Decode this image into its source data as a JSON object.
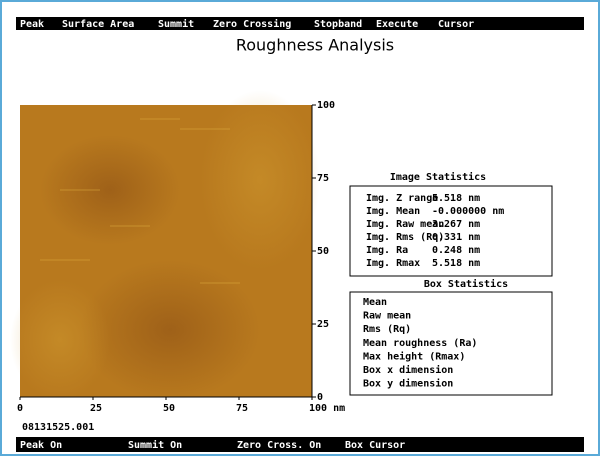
{
  "menu": [
    "Peak",
    "Surface Area",
    "Summit",
    "Zero Crossing",
    "Stopband",
    "Execute",
    "Cursor"
  ],
  "title": "Roughness Analysis",
  "image": {
    "xlim": [
      0,
      100
    ],
    "ylim": [
      0,
      100
    ],
    "xticks": [
      0,
      25,
      50,
      75,
      {
        "value": 100,
        "label": "100 nm"
      }
    ],
    "yticks": [
      0,
      25,
      50,
      75,
      100
    ]
  },
  "image_statistics": {
    "title": "Image Statistics",
    "rows": [
      [
        "Img. Z range",
        "5.518 nm"
      ],
      [
        "Img. Mean",
        "-0.000000 nm"
      ],
      [
        "Img. Raw mean",
        "3.267 nm"
      ],
      [
        "Img. Rms (Rq)",
        "0.331 nm"
      ],
      [
        "Img. Ra",
        "0.248 nm"
      ],
      [
        "Img. Rmax",
        "5.518 nm"
      ]
    ]
  },
  "box_statistics": {
    "title": "Box Statistics",
    "rows": [
      "Mean",
      "Raw mean",
      "Rms (Rq)",
      "Mean roughness (Ra)",
      "Max height (Rmax)",
      "Box x dimension",
      "Box y dimension"
    ]
  },
  "filename": "08131525.001",
  "status_bar": [
    "Peak On",
    "Summit On",
    "Zero Cross. On",
    "Box Cursor"
  ]
}
